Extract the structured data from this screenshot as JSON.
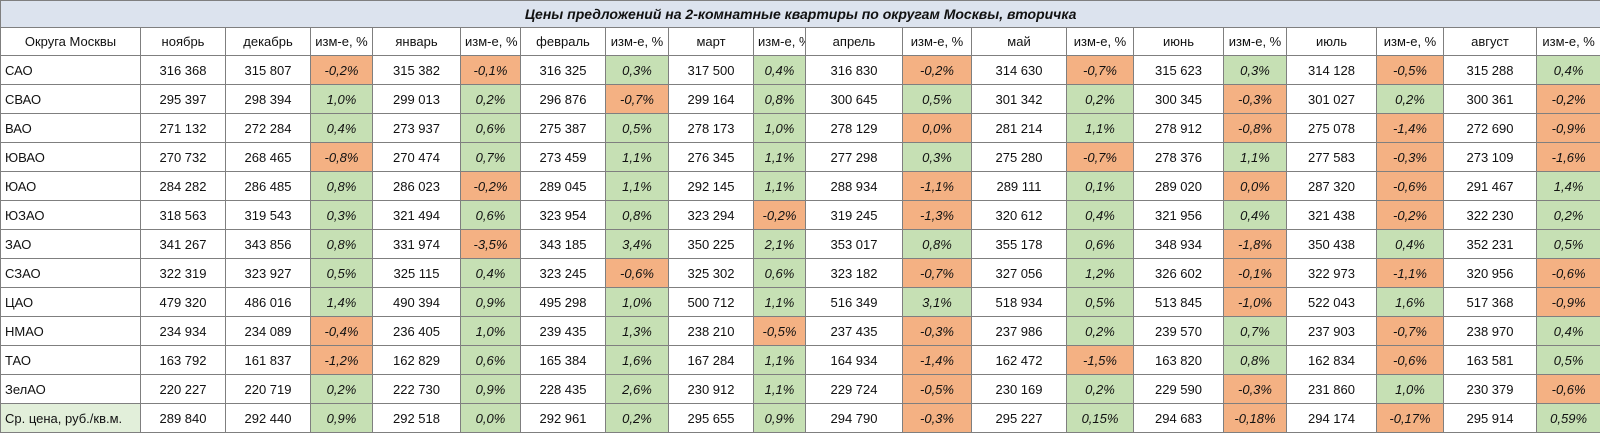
{
  "title": "Цены предложений на 2-комнатные квартиры по округам Москвы, вторичка",
  "colors": {
    "increase": "#c6e0b4",
    "decrease": "#f4b183",
    "title_bg": "#dce3ee"
  },
  "headers": [
    "Округа Москвы",
    "ноябрь",
    "декабрь",
    "изм-е, %",
    "январь",
    "изм-е, %",
    "февраль",
    "изм-е, %",
    "март",
    "изм-е, %",
    "апрель",
    "изм-е, %",
    "май",
    "изм-е, %",
    "июнь",
    "изм-е, %",
    "июль",
    "изм-е, %",
    "август",
    "изм-е, %"
  ],
  "rows": [
    {
      "district": "САО",
      "nov": "316 368",
      "cells": [
        [
          "315 807",
          "-0,2%",
          "o"
        ],
        [
          "315 382",
          "-0,1%",
          "o"
        ],
        [
          "316 325",
          "0,3%",
          "g"
        ],
        [
          "317 500",
          "0,4%",
          "g"
        ],
        [
          "316 830",
          "-0,2%",
          "o"
        ],
        [
          "314 630",
          "-0,7%",
          "o"
        ],
        [
          "315 623",
          "0,3%",
          "g"
        ],
        [
          "314 128",
          "-0,5%",
          "o"
        ],
        [
          "315 288",
          "0,4%",
          "g"
        ]
      ]
    },
    {
      "district": "СВАО",
      "nov": "295 397",
      "cells": [
        [
          "298 394",
          "1,0%",
          "g"
        ],
        [
          "299 013",
          "0,2%",
          "g"
        ],
        [
          "296 876",
          "-0,7%",
          "o"
        ],
        [
          "299 164",
          "0,8%",
          "g"
        ],
        [
          "300 645",
          "0,5%",
          "g"
        ],
        [
          "301 342",
          "0,2%",
          "g"
        ],
        [
          "300 345",
          "-0,3%",
          "o"
        ],
        [
          "301 027",
          "0,2%",
          "g"
        ],
        [
          "300 361",
          "-0,2%",
          "o"
        ]
      ]
    },
    {
      "district": "ВАО",
      "nov": "271 132",
      "cells": [
        [
          "272 284",
          "0,4%",
          "g"
        ],
        [
          "273 937",
          "0,6%",
          "g"
        ],
        [
          "275 387",
          "0,5%",
          "g"
        ],
        [
          "278 173",
          "1,0%",
          "g"
        ],
        [
          "278 129",
          "0,0%",
          "o"
        ],
        [
          "281 214",
          "1,1%",
          "g"
        ],
        [
          "278 912",
          "-0,8%",
          "o"
        ],
        [
          "275 078",
          "-1,4%",
          "o"
        ],
        [
          "272 690",
          "-0,9%",
          "o"
        ]
      ]
    },
    {
      "district": "ЮВАО",
      "nov": "270 732",
      "cells": [
        [
          "268 465",
          "-0,8%",
          "o"
        ],
        [
          "270 474",
          "0,7%",
          "g"
        ],
        [
          "273 459",
          "1,1%",
          "g"
        ],
        [
          "276 345",
          "1,1%",
          "g"
        ],
        [
          "277 298",
          "0,3%",
          "g"
        ],
        [
          "275 280",
          "-0,7%",
          "o"
        ],
        [
          "278 376",
          "1,1%",
          "g"
        ],
        [
          "277 583",
          "-0,3%",
          "o"
        ],
        [
          "273 109",
          "-1,6%",
          "o"
        ]
      ]
    },
    {
      "district": "ЮАО",
      "nov": "284 282",
      "cells": [
        [
          "286 485",
          "0,8%",
          "g"
        ],
        [
          "286 023",
          "-0,2%",
          "o"
        ],
        [
          "289 045",
          "1,1%",
          "g"
        ],
        [
          "292 145",
          "1,1%",
          "g"
        ],
        [
          "288 934",
          "-1,1%",
          "o"
        ],
        [
          "289 111",
          "0,1%",
          "g"
        ],
        [
          "289 020",
          "0,0%",
          "o"
        ],
        [
          "287 320",
          "-0,6%",
          "o"
        ],
        [
          "291 467",
          "1,4%",
          "g"
        ]
      ]
    },
    {
      "district": "ЮЗАО",
      "nov": "318 563",
      "cells": [
        [
          "319 543",
          "0,3%",
          "g"
        ],
        [
          "321 494",
          "0,6%",
          "g"
        ],
        [
          "323 954",
          "0,8%",
          "g"
        ],
        [
          "323 294",
          "-0,2%",
          "o"
        ],
        [
          "319 245",
          "-1,3%",
          "o"
        ],
        [
          "320 612",
          "0,4%",
          "g"
        ],
        [
          "321 956",
          "0,4%",
          "g"
        ],
        [
          "321 438",
          "-0,2%",
          "o"
        ],
        [
          "322 230",
          "0,2%",
          "g"
        ]
      ]
    },
    {
      "district": "ЗАО",
      "nov": "341 267",
      "cells": [
        [
          "343 856",
          "0,8%",
          "g"
        ],
        [
          "331 974",
          "-3,5%",
          "o"
        ],
        [
          "343 185",
          "3,4%",
          "g"
        ],
        [
          "350 225",
          "2,1%",
          "g"
        ],
        [
          "353 017",
          "0,8%",
          "g"
        ],
        [
          "355 178",
          "0,6%",
          "g"
        ],
        [
          "348 934",
          "-1,8%",
          "o"
        ],
        [
          "350 438",
          "0,4%",
          "g"
        ],
        [
          "352 231",
          "0,5%",
          "g"
        ]
      ]
    },
    {
      "district": "СЗАО",
      "nov": "322 319",
      "cells": [
        [
          "323 927",
          "0,5%",
          "g"
        ],
        [
          "325 115",
          "0,4%",
          "g"
        ],
        [
          "323 245",
          "-0,6%",
          "o"
        ],
        [
          "325 302",
          "0,6%",
          "g"
        ],
        [
          "323 182",
          "-0,7%",
          "o"
        ],
        [
          "327 056",
          "1,2%",
          "g"
        ],
        [
          "326 602",
          "-0,1%",
          "o"
        ],
        [
          "322 973",
          "-1,1%",
          "o"
        ],
        [
          "320 956",
          "-0,6%",
          "o"
        ]
      ]
    },
    {
      "district": "ЦАО",
      "nov": "479 320",
      "cells": [
        [
          "486 016",
          "1,4%",
          "g"
        ],
        [
          "490 394",
          "0,9%",
          "g"
        ],
        [
          "495 298",
          "1,0%",
          "g"
        ],
        [
          "500 712",
          "1,1%",
          "g"
        ],
        [
          "516 349",
          "3,1%",
          "g"
        ],
        [
          "518 934",
          "0,5%",
          "g"
        ],
        [
          "513 845",
          "-1,0%",
          "o"
        ],
        [
          "522 043",
          "1,6%",
          "g"
        ],
        [
          "517 368",
          "-0,9%",
          "o"
        ]
      ]
    },
    {
      "district": "НМАО",
      "nov": "234 934",
      "cells": [
        [
          "234 089",
          "-0,4%",
          "o"
        ],
        [
          "236 405",
          "1,0%",
          "g"
        ],
        [
          "239 435",
          "1,3%",
          "g"
        ],
        [
          "238 210",
          "-0,5%",
          "o"
        ],
        [
          "237 435",
          "-0,3%",
          "o"
        ],
        [
          "237 986",
          "0,2%",
          "g"
        ],
        [
          "239 570",
          "0,7%",
          "g"
        ],
        [
          "237 903",
          "-0,7%",
          "o"
        ],
        [
          "238 970",
          "0,4%",
          "g"
        ]
      ]
    },
    {
      "district": "ТАО",
      "nov": "163 792",
      "cells": [
        [
          "161 837",
          "-1,2%",
          "o"
        ],
        [
          "162 829",
          "0,6%",
          "g"
        ],
        [
          "165 384",
          "1,6%",
          "g"
        ],
        [
          "167 284",
          "1,1%",
          "g"
        ],
        [
          "164 934",
          "-1,4%",
          "o"
        ],
        [
          "162 472",
          "-1,5%",
          "o"
        ],
        [
          "163 820",
          "0,8%",
          "g"
        ],
        [
          "162 834",
          "-0,6%",
          "o"
        ],
        [
          "163 581",
          "0,5%",
          "g"
        ]
      ]
    },
    {
      "district": "ЗелАО",
      "nov": "220 227",
      "cells": [
        [
          "220 719",
          "0,2%",
          "g"
        ],
        [
          "222 730",
          "0,9%",
          "g"
        ],
        [
          "228 435",
          "2,6%",
          "g"
        ],
        [
          "230 912",
          "1,1%",
          "g"
        ],
        [
          "229 724",
          "-0,5%",
          "o"
        ],
        [
          "230 169",
          "0,2%",
          "g"
        ],
        [
          "229 590",
          "-0,3%",
          "o"
        ],
        [
          "231 860",
          "1,0%",
          "g"
        ],
        [
          "230 379",
          "-0,6%",
          "o"
        ]
      ]
    },
    {
      "district": "Ср. цена, руб./кв.м.",
      "nov": "289 840",
      "avg": true,
      "cells": [
        [
          "292 440",
          "0,9%",
          "g"
        ],
        [
          "292 518",
          "0,0%",
          "g"
        ],
        [
          "292 961",
          "0,2%",
          "g"
        ],
        [
          "295 655",
          "0,9%",
          "g"
        ],
        [
          "294 790",
          "-0,3%",
          "o"
        ],
        [
          "295 227",
          "0,15%",
          "g"
        ],
        [
          "294 683",
          "-0,18%",
          "o"
        ],
        [
          "294 174",
          "-0,17%",
          "o"
        ],
        [
          "295 914",
          "0,59%",
          "g"
        ]
      ]
    }
  ]
}
